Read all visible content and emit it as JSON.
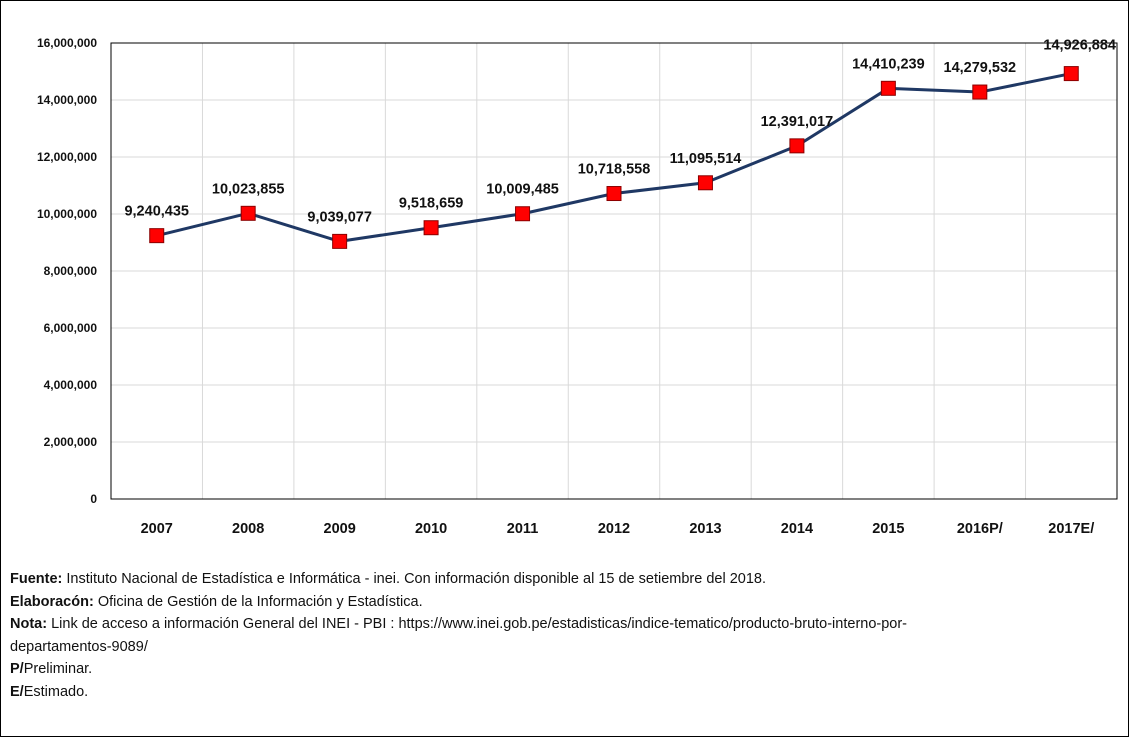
{
  "chart_data": {
    "type": "line",
    "categories": [
      "2007",
      "2008",
      "2009",
      "2010",
      "2011",
      "2012",
      "2013",
      "2014",
      "2015",
      "2016P/",
      "2017E/"
    ],
    "series": [
      {
        "values": [
          9240435,
          10023855,
          9039077,
          9518659,
          10009485,
          10718558,
          11095514,
          12391017,
          14410239,
          14279532,
          14926884
        ]
      }
    ],
    "data_labels": [
      "9,240,435",
      "10,023,855",
      "9,039,077",
      "9,518,659",
      "10,009,485",
      "10,718,558",
      "11,095,514",
      "12,391,017",
      "14,410,239",
      "14,279,532",
      "14,926,884"
    ],
    "y_ticks": [
      0,
      2000000,
      4000000,
      6000000,
      8000000,
      10000000,
      12000000,
      14000000,
      16000000
    ],
    "y_tick_labels": [
      "0",
      "2,000,000",
      "4,000,000",
      "6,000,000",
      "8,000,000",
      "10,000,000",
      "12,000,000",
      "14,000,000",
      "16,000,000"
    ],
    "ylim": [
      0,
      16000000
    ],
    "grid": true,
    "legend": "none",
    "colors": {
      "line": "#1f3864",
      "marker": "#ff0000",
      "marker_edge": "#8b0000",
      "grid": "#d9d9d9",
      "axis": "#000000"
    }
  },
  "notes": {
    "fuente": {
      "label": "Fuente:",
      "text": " Instituto Nacional de Estadística e Informática - inei. Con información disponible al 15 de setiembre del 2018."
    },
    "elaboracion": {
      "label": "Elaboracón:",
      "text": " Oficina de Gestión de la Información y Estadística."
    },
    "nota": {
      "label": "Nota:",
      "text": " Link de acceso a información General del INEI - PBI : https://www.inei.gob.pe/estadisticas/indice-tematico/producto-bruto-interno-por-",
      "text_cont": "departamentos-9089/"
    },
    "preliminar": {
      "label": "P/",
      "text": "Preliminar."
    },
    "estimado": {
      "label": "E/",
      "text": "Estimado."
    }
  }
}
